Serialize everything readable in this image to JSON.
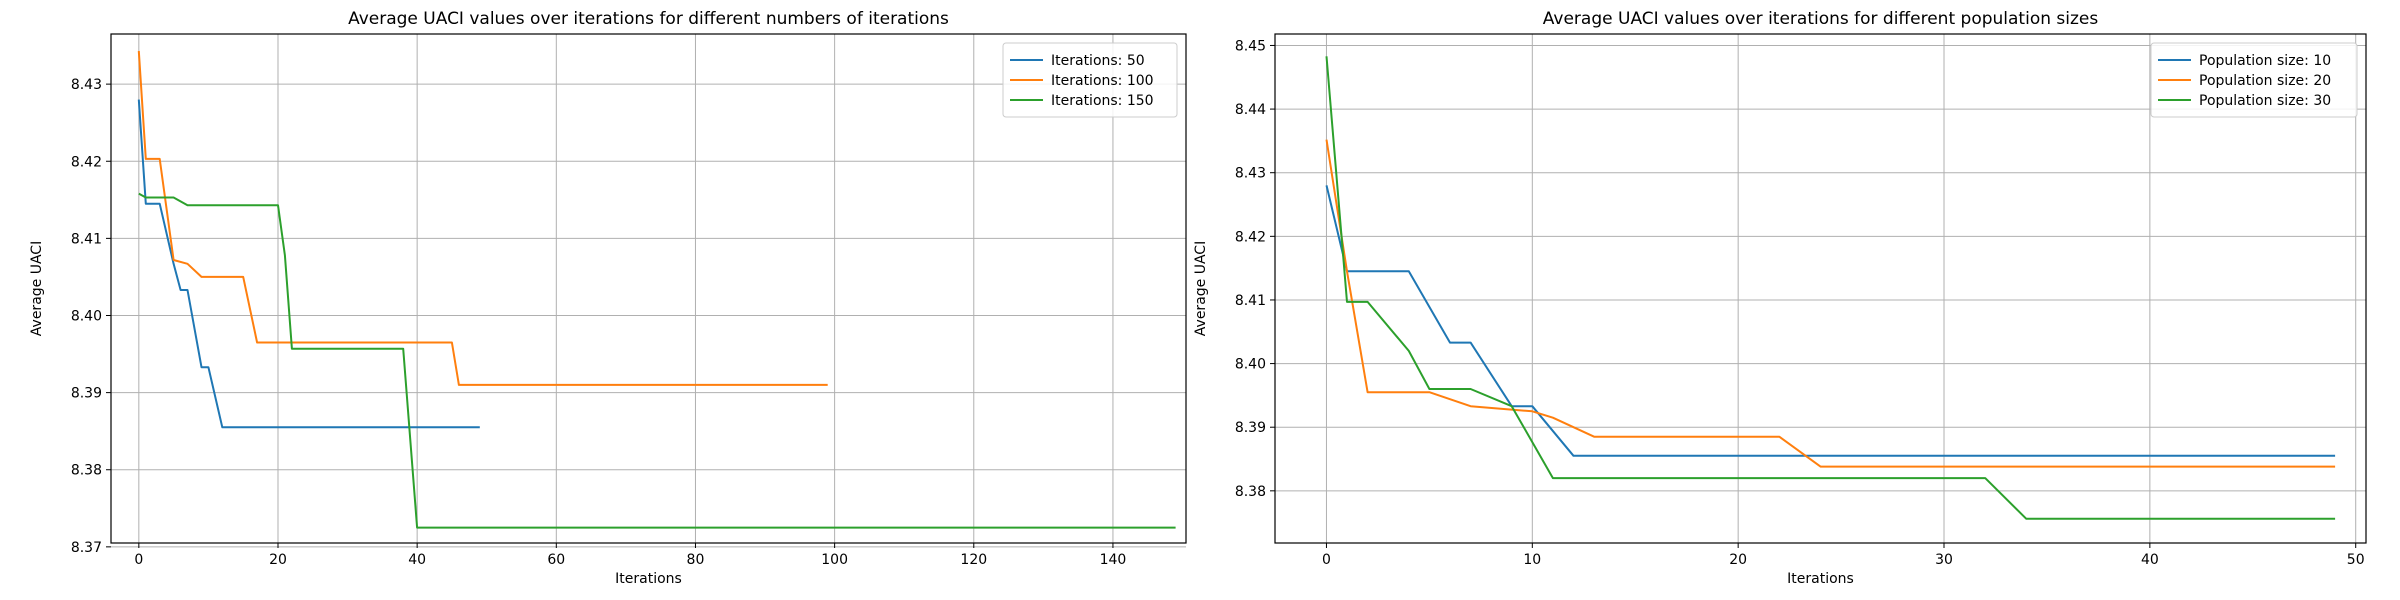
{
  "chart_data": [
    {
      "type": "line",
      "title": "Average UACI values over iterations for different numbers of iterations",
      "xlabel": "Iterations",
      "ylabel": "Average UACI",
      "xlim": [
        -4,
        150.5
      ],
      "ylim": [
        8.3705,
        8.4365
      ],
      "xticks": [
        0,
        20,
        40,
        60,
        80,
        100,
        120,
        140
      ],
      "yticks": [
        8.37,
        8.38,
        8.39,
        8.4,
        8.41,
        8.42,
        8.43
      ],
      "grid": true,
      "legend": "upper right",
      "series": [
        {
          "name": "Iterations: 50",
          "color": "#1f77b4",
          "points": [
            [
              0,
              8.428
            ],
            [
              1,
              8.4145
            ],
            [
              3,
              8.4145
            ],
            [
              5,
              8.4067
            ],
            [
              6,
              8.4033
            ],
            [
              7,
              8.4033
            ],
            [
              9,
              8.3933
            ],
            [
              10,
              8.3933
            ],
            [
              12,
              8.3855
            ],
            [
              49,
              8.3855
            ]
          ]
        },
        {
          "name": "Iterations: 100",
          "color": "#ff7f0e",
          "points": [
            [
              0,
              8.4343
            ],
            [
              1,
              8.4203
            ],
            [
              3,
              8.4203
            ],
            [
              5,
              8.4072
            ],
            [
              7,
              8.4067
            ],
            [
              9,
              8.405
            ],
            [
              15,
              8.405
            ],
            [
              17,
              8.3965
            ],
            [
              45,
              8.3965
            ],
            [
              46,
              8.391
            ],
            [
              99,
              8.391
            ]
          ]
        },
        {
          "name": "Iterations: 150",
          "color": "#2ca02c",
          "points": [
            [
              0,
              8.4158
            ],
            [
              1,
              8.4153
            ],
            [
              5,
              8.4153
            ],
            [
              7,
              8.4143
            ],
            [
              20,
              8.4143
            ],
            [
              21,
              8.4078
            ],
            [
              22,
              8.3957
            ],
            [
              38,
              8.3957
            ],
            [
              40,
              8.3725
            ],
            [
              149,
              8.3725
            ]
          ]
        }
      ]
    },
    {
      "type": "line",
      "title": "Average UACI values over iterations for different population sizes",
      "xlabel": "Iterations",
      "ylabel": "Average UACI",
      "xlim": [
        -2.5,
        50.5
      ],
      "ylim": [
        8.3718,
        8.4518
      ],
      "xticks": [
        0,
        10,
        20,
        30,
        40,
        50
      ],
      "yticks": [
        8.38,
        8.39,
        8.4,
        8.41,
        8.42,
        8.43,
        8.44,
        8.45
      ],
      "grid": true,
      "legend": "upper right",
      "series": [
        {
          "name": "Population size: 10",
          "color": "#1f77b4",
          "points": [
            [
              0,
              8.428
            ],
            [
              1,
              8.4145
            ],
            [
              4,
              8.4145
            ],
            [
              6,
              8.4033
            ],
            [
              7,
              8.4033
            ],
            [
              9,
              8.3933
            ],
            [
              10,
              8.3933
            ],
            [
              12,
              8.3855
            ],
            [
              49,
              8.3855
            ]
          ]
        },
        {
          "name": "Population size: 20",
          "color": "#ff7f0e",
          "points": [
            [
              0,
              8.4352
            ],
            [
              1,
              8.4145
            ],
            [
              2,
              8.3955
            ],
            [
              5,
              8.3955
            ],
            [
              7,
              8.3933
            ],
            [
              10,
              8.3925
            ],
            [
              11,
              8.3915
            ],
            [
              13,
              8.3885
            ],
            [
              22,
              8.3885
            ],
            [
              24,
              8.3838
            ],
            [
              49,
              8.3838
            ]
          ]
        },
        {
          "name": "Population size: 30",
          "color": "#2ca02c",
          "points": [
            [
              0,
              8.4483
            ],
            [
              1,
              8.4097
            ],
            [
              2,
              8.4097
            ],
            [
              4,
              8.402
            ],
            [
              5,
              8.396
            ],
            [
              7,
              8.396
            ],
            [
              9,
              8.3933
            ],
            [
              11,
              8.382
            ],
            [
              32,
              8.382
            ],
            [
              34,
              8.3756
            ],
            [
              49,
              8.3756
            ]
          ]
        }
      ]
    }
  ]
}
